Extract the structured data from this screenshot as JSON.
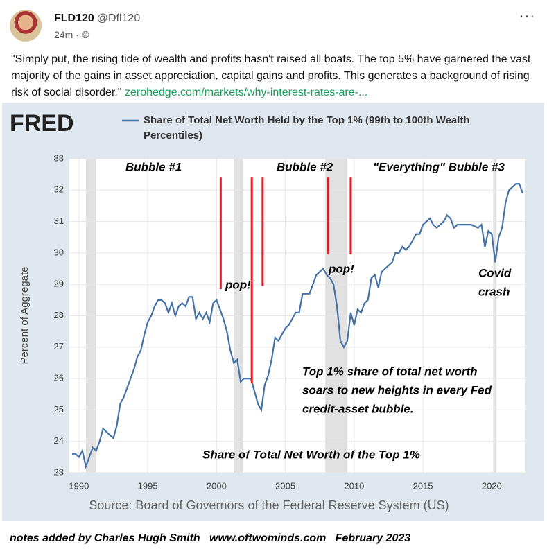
{
  "post": {
    "name": "FLD120",
    "handle": "@Dfl120",
    "time": "24m",
    "text": "\"Simply put, the rising tide of wealth and profits hasn't raised all boats. The top 5% have garnered the vast majority of the gains in asset appreciation, capital gains and profits. This generates a background of rising risk of social disorder.\"",
    "link": "zerohedge.com/markets/why-interest-rates-are-...",
    "footer": "notes added by Charles Hugh Smith   www.oftwominds.com   February 2023"
  },
  "chart_data": {
    "type": "line",
    "logo": "FRED",
    "y_label": "Percent of Aggregate",
    "source": "Source: Board of Governors of the Federal Reserve System (US)",
    "x": [
      1989.5,
      1989.75,
      1990,
      1990.25,
      1990.5,
      1990.75,
      1991,
      1991.25,
      1991.5,
      1991.75,
      1992,
      1992.25,
      1992.5,
      1992.75,
      1993,
      1993.25,
      1993.5,
      1993.75,
      1994,
      1994.25,
      1994.5,
      1994.75,
      1995,
      1995.25,
      1995.5,
      1995.75,
      1996,
      1996.25,
      1996.5,
      1996.75,
      1997,
      1997.25,
      1997.5,
      1997.75,
      1998,
      1998.25,
      1998.5,
      1998.75,
      1999,
      1999.25,
      1999.5,
      1999.75,
      2000,
      2000.25,
      2000.5,
      2000.75,
      2001,
      2001.25,
      2001.5,
      2001.75,
      2002,
      2002.5,
      2002.75,
      2003,
      2003.25,
      2003.5,
      2003.75,
      2004,
      2004.25,
      2004.5,
      2004.75,
      2005,
      2005.25,
      2005.5,
      2005.75,
      2006,
      2006.25,
      2006.5,
      2006.75,
      2007,
      2007.25,
      2007.5,
      2007.75,
      2008,
      2008.25,
      2008.5,
      2008.75,
      2009,
      2009.25,
      2009.5,
      2009.75,
      2010,
      2010.25,
      2010.5,
      2010.75,
      2011,
      2011.25,
      2011.5,
      2011.75,
      2012,
      2012.5,
      2012.75,
      2013,
      2013.25,
      2013.5,
      2013.75,
      2014,
      2014.25,
      2014.5,
      2014.75,
      2015,
      2015.25,
      2015.5,
      2015.75,
      2016,
      2016.5,
      2016.75,
      2017,
      2017.25,
      2017.5,
      2018,
      2018.5,
      2019,
      2019.25,
      2019.5,
      2019.75,
      2020,
      2020.25,
      2020.5,
      2020.75,
      2021,
      2021.25,
      2021.5,
      2021.75,
      2022,
      2022.25
    ],
    "series": [
      {
        "name": "Share of Total Net Worth Held by the Top 1% (99th to 100th Wealth Percentiles)",
        "color": "#4572a7",
        "values": [
          23.6,
          23.6,
          23.5,
          23.7,
          23.2,
          23.5,
          23.8,
          23.7,
          24.0,
          24.4,
          24.3,
          24.2,
          24.1,
          24.5,
          25.2,
          25.4,
          25.7,
          26.0,
          26.3,
          26.7,
          26.9,
          27.4,
          27.8,
          28.0,
          28.3,
          28.5,
          28.5,
          28.4,
          28.1,
          28.4,
          28.0,
          28.3,
          28.4,
          28.3,
          28.6,
          28.6,
          27.9,
          28.1,
          27.9,
          28.1,
          27.8,
          28.4,
          28.5,
          28.2,
          27.9,
          27.5,
          26.9,
          26.5,
          26.6,
          25.9,
          26.0,
          26.0,
          25.6,
          25.2,
          25.0,
          25.8,
          26.1,
          26.6,
          27.3,
          27.2,
          27.4,
          27.6,
          27.7,
          27.9,
          28.1,
          28.1,
          28.7,
          28.7,
          28.7,
          29.0,
          29.3,
          29.4,
          29.5,
          29.3,
          29.2,
          29.0,
          28.3,
          27.2,
          27.0,
          27.2,
          28.1,
          27.7,
          28.2,
          28.1,
          28.4,
          28.5,
          29.2,
          29.3,
          28.9,
          29.4,
          29.6,
          29.7,
          30.0,
          30.0,
          30.2,
          30.1,
          30.2,
          30.4,
          30.6,
          30.6,
          30.9,
          31.0,
          31.1,
          30.9,
          30.8,
          31.0,
          31.2,
          31.1,
          30.8,
          30.9,
          30.9,
          30.9,
          30.8,
          30.9,
          30.2,
          30.7,
          30.6,
          29.7,
          30.5,
          30.8,
          31.6,
          32.0,
          32.1,
          32.2,
          32.2,
          31.9
        ]
      }
    ],
    "xlim": [
      1989.3,
      2022.4
    ],
    "ylim": [
      23,
      33
    ],
    "xticks": [
      1990,
      1995,
      2000,
      2005,
      2010,
      2015,
      2020
    ],
    "yticks": [
      23,
      24,
      25,
      26,
      27,
      28,
      29,
      30,
      31,
      32,
      33
    ],
    "grid": true,
    "recessions": [
      [
        1990.5,
        1991.25
      ],
      [
        2001.25,
        2001.9
      ],
      [
        2007.9,
        2009.5
      ],
      [
        2020.1,
        2020.35
      ]
    ],
    "annotation_lines": [
      {
        "x": 2002.56,
        "y": [
          25.85,
          32.4
        ]
      },
      {
        "x": 2000.3,
        "y": [
          28.85,
          32.4
        ]
      },
      {
        "x": 2003.35,
        "y": [
          28.95,
          32.4
        ]
      },
      {
        "x": 2008.1,
        "y": [
          29.95,
          32.4
        ]
      },
      {
        "x": 2009.75,
        "y": [
          29.95,
          32.4
        ]
      }
    ],
    "annotation_color": "#e31b23",
    "annotations": {
      "bubble1": "Bubble #1",
      "bubble2": "Bubble #2",
      "bubble3": "\"Everything\" Bubble #3",
      "pop1": "pop!",
      "pop2": "pop!",
      "covid": [
        "Covid",
        "crash"
      ],
      "note": [
        "Top 1% share of total net worth",
        "soars to new heights in every Fed",
        "credit-asset bubble."
      ],
      "headline": "Share of Total Net Worth of the Top 1%"
    }
  }
}
